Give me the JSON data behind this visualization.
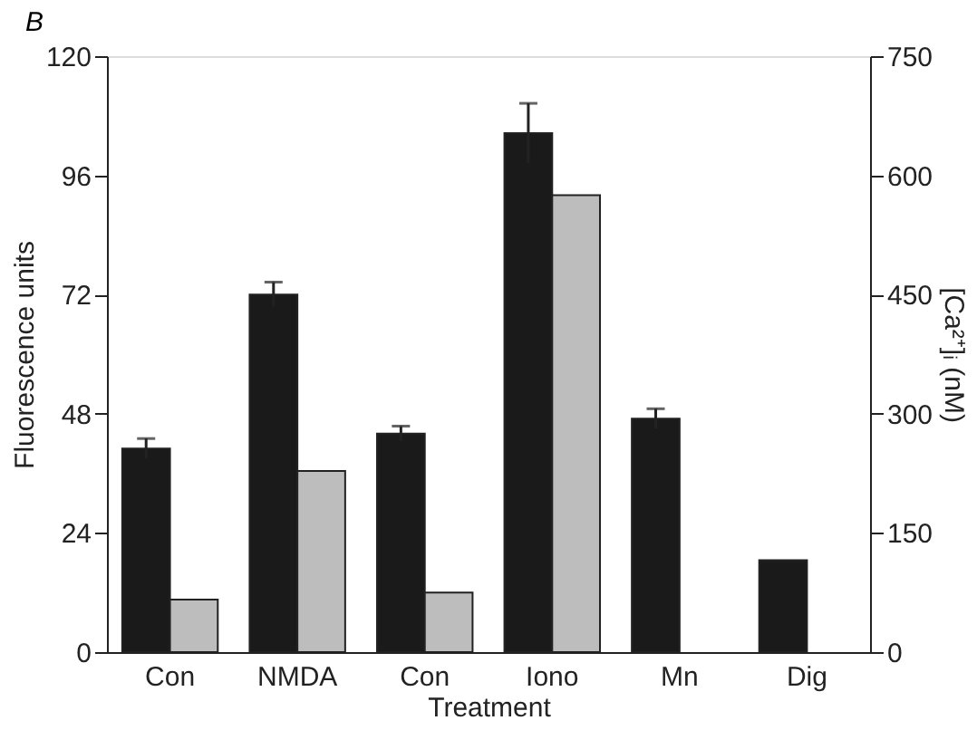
{
  "chart_data": {
    "type": "bar",
    "title": "B",
    "xlabel": "Treatment",
    "ylabel": "Fluorescence units",
    "y2label": "[Ca²⁺]ᵢ (nM)",
    "categories": [
      "Con",
      "NMDA",
      "Con",
      "Iono",
      "Mn",
      "Dig"
    ],
    "series": [
      {
        "color": "#1a1a1a",
        "values": [
          41,
          72,
          44,
          104.5,
          47,
          18.5
        ],
        "errors": [
          2,
          2.5,
          1.5,
          6,
          2,
          null
        ]
      },
      {
        "color": "#bdbdbd",
        "axis": "y2",
        "values": [
          66,
          228,
          75,
          575,
          null,
          null
        ]
      }
    ],
    "ylim": [
      0,
      120
    ],
    "yticks": [
      0,
      24,
      48,
      72,
      96,
      120
    ],
    "y2lim": [
      0,
      750
    ],
    "y2ticks": [
      0,
      150,
      300,
      450,
      600,
      750
    ],
    "grid": false,
    "legend": false
  }
}
